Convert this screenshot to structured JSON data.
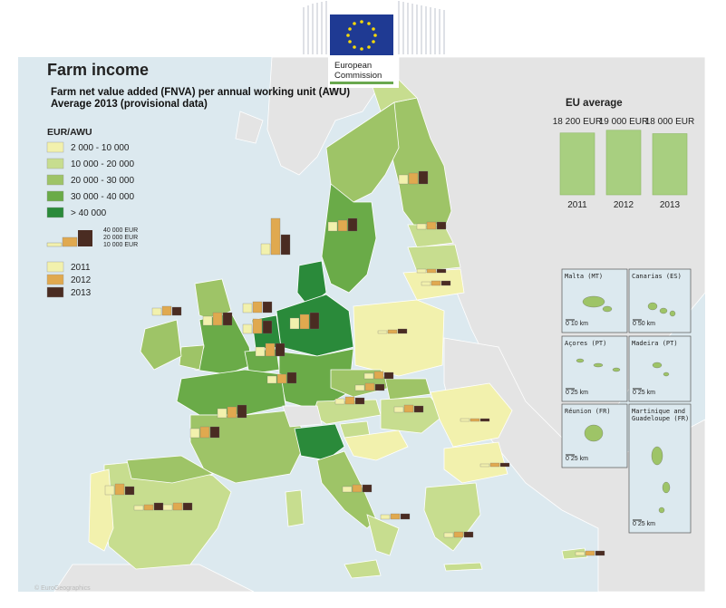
{
  "title": "Farm income",
  "subtitle_line1": "Farm net value added (FNVA) per annual working unit (AWU)",
  "subtitle_line2": "Average 2013 (provisional data)",
  "logo": {
    "line1": "European",
    "line2": "Commission",
    "icon": "eu-flag-icon"
  },
  "legend": {
    "heading": "EUR/AWU",
    "classes": [
      {
        "label": "2 000 - 10 000",
        "color": "#f2f1ad"
      },
      {
        "label": "10 000 - 20 000",
        "color": "#c7dd8f"
      },
      {
        "label": "20 000 - 30 000",
        "color": "#9ec467"
      },
      {
        "label": "30 000 - 40 000",
        "color": "#6aab48"
      },
      {
        "label": "> 40 000",
        "color": "#2a8a3a"
      }
    ],
    "bar_scale": [
      "40 000 EUR",
      "20 000 EUR",
      "10 000 EUR"
    ],
    "years": [
      {
        "label": "2011",
        "color": "#f2f1ad"
      },
      {
        "label": "2012",
        "color": "#e0a94f"
      },
      {
        "label": "2013",
        "color": "#4a2c22"
      }
    ]
  },
  "eu_average": {
    "heading": "EU average",
    "bars": [
      {
        "year": "2011",
        "label": "18 200 EUR",
        "value": 18200
      },
      {
        "year": "2012",
        "label": "19 000 EUR",
        "value": 19000
      },
      {
        "year": "2013",
        "label": "18 000 EUR",
        "value": 18000
      }
    ],
    "color": "#a8cf80"
  },
  "insets": [
    {
      "name": "Malta (MT)",
      "scale": "10 km",
      "scale_start": "0"
    },
    {
      "name": "Canarias (ES)",
      "scale": "50 km",
      "scale_start": "0"
    },
    {
      "name": "Açores (PT)",
      "scale": "25 km",
      "scale_start": "0"
    },
    {
      "name": "Madeira (PT)",
      "scale": "25 km",
      "scale_start": "0"
    },
    {
      "name": "Réunion (FR)",
      "scale": "25 km",
      "scale_start": "0"
    },
    {
      "name": "Martinique and Guadeloupe (FR)",
      "scale": "25 km",
      "scale_start": "0"
    }
  ],
  "colors": {
    "sea": "#dce9ef",
    "non_eu_land": "#e4e4e4",
    "border": "#ffffff"
  }
}
